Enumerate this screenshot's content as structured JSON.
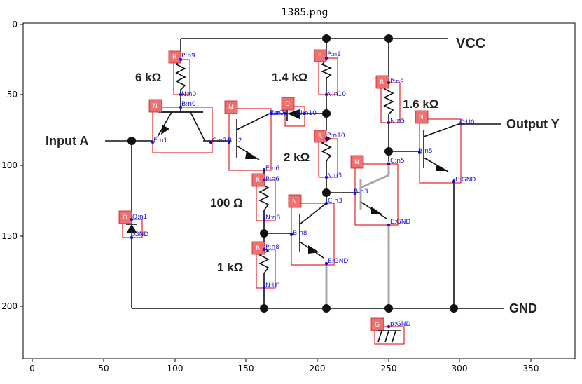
{
  "title": "1385.png",
  "axes": {
    "x_ticks": [
      "0",
      "50",
      "100",
      "150",
      "200",
      "250",
      "300",
      "350"
    ],
    "y_ticks": [
      "0",
      "50",
      "100",
      "150",
      "200"
    ]
  },
  "labels": {
    "vcc": "VCC",
    "gnd": "GND",
    "input": "Input A",
    "output": "Output Y",
    "r1": "6 kΩ",
    "r2": "1.4 kΩ",
    "r3": "1.6 kΩ",
    "r4": "2 kΩ",
    "r5": "100 Ω",
    "r6": "1 kΩ"
  },
  "components": {
    "R": "R",
    "N": "N",
    "D": "D",
    "G": "G"
  },
  "pins": {
    "r1_p": "P:n9",
    "r1_n": "N:n0",
    "r2_p": "P:n9",
    "r2_n": "N:n10",
    "r3_p": "P:n9",
    "r3_n": "N:n5",
    "r4_p": "P:n10",
    "r4_n": "N:n3",
    "r5_p": "P:n6",
    "r5_n": "N:n8",
    "r6_p": "P:n8",
    "r6_n": "N:U1",
    "q1_b": "B:n0",
    "q1_e": "E:n1",
    "q1_c": "C:n2",
    "q2_b": "B:n2",
    "q2_c": "C:n7",
    "q2_e": "E:n6",
    "d1_p": "P:n7",
    "d1_n": "N:n10",
    "q3_b": "B:n3",
    "q3_c": "C:n5",
    "q3_e": "E:GND",
    "q4_b": "B:n5",
    "q4_c": "C:U0",
    "q4_e": "E:GND",
    "q5_b": "B:n8",
    "q5_c": "C:n3",
    "q5_e": "E:GND",
    "d2_o": "O:n1",
    "d2_g": "I:GND",
    "g_p": "p:GND"
  }
}
